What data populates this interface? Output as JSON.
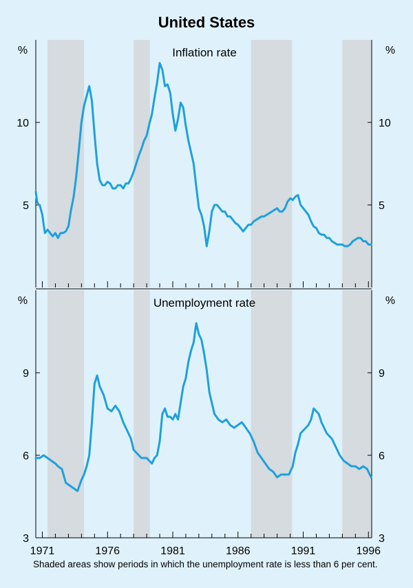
{
  "chart_data": {
    "type": "line",
    "title": "United States",
    "note": "Shaded areas show periods in which the unemployment rate is less than 6 per cent.",
    "x_range": [
      1970.5,
      1996.25
    ],
    "x_ticks": [
      1971,
      1976,
      1981,
      1986,
      1991,
      1996
    ],
    "shaded_periods": [
      [
        1971.4,
        1974.2
      ],
      [
        1978.0,
        1979.25
      ],
      [
        1987.0,
        1990.15
      ],
      [
        1994.0,
        1996.25
      ]
    ],
    "line_color": "#1ea0dc",
    "shade_color": "#d5dbdf",
    "panels": [
      {
        "title": "Inflation rate",
        "unit_left": "%",
        "unit_right": "%",
        "ylim": [
          0,
          15
        ],
        "y_ticks": [
          5,
          10
        ],
        "series": [
          {
            "x": [
              1970.5,
              1970.6,
              1970.7,
              1970.8,
              1970.9,
              1971.0,
              1971.1,
              1971.2,
              1971.4,
              1971.6,
              1971.8,
              1972.0,
              1972.2,
              1972.4,
              1972.6,
              1972.8,
              1973.0,
              1973.2,
              1973.4,
              1973.6,
              1973.8,
              1974.0,
              1974.2,
              1974.4,
              1974.6,
              1974.8,
              1975.0,
              1975.2,
              1975.4,
              1975.6,
              1975.8,
              1976.0,
              1976.2,
              1976.4,
              1976.6,
              1976.8,
              1977.0,
              1977.2,
              1977.4,
              1977.6,
              1977.8,
              1978.0,
              1978.2,
              1978.4,
              1978.6,
              1978.8,
              1979.0,
              1979.2,
              1979.4,
              1979.6,
              1979.8,
              1980.0,
              1980.2,
              1980.4,
              1980.6,
              1980.8,
              1981.0,
              1981.2,
              1981.4,
              1981.6,
              1981.8,
              1982.0,
              1982.2,
              1982.4,
              1982.6,
              1982.8,
              1983.0,
              1983.2,
              1983.4,
              1983.6,
              1983.8,
              1984.0,
              1984.2,
              1984.4,
              1984.6,
              1984.8,
              1985.0,
              1985.2,
              1985.4,
              1985.6,
              1985.8,
              1986.0,
              1986.2,
              1986.4,
              1986.6,
              1986.8,
              1987.0,
              1987.2,
              1987.4,
              1987.6,
              1987.8,
              1988.0,
              1988.2,
              1988.4,
              1988.6,
              1988.8,
              1989.0,
              1989.2,
              1989.4,
              1989.6,
              1989.8,
              1990.0,
              1990.2,
              1990.4,
              1990.6,
              1990.8,
              1991.0,
              1991.2,
              1991.4,
              1991.6,
              1991.8,
              1992.0,
              1992.2,
              1992.4,
              1992.6,
              1992.8,
              1993.0,
              1993.2,
              1993.4,
              1993.6,
              1993.8,
              1994.0,
              1994.2,
              1994.4,
              1994.6,
              1994.8,
              1995.0,
              1995.2,
              1995.4,
              1995.6,
              1995.8,
              1996.0,
              1996.2
            ],
            "y": [
              5.8,
              5.2,
              5.0,
              5.0,
              4.7,
              4.4,
              3.8,
              3.3,
              3.5,
              3.3,
              3.1,
              3.3,
              3.0,
              3.3,
              3.3,
              3.4,
              3.7,
              4.7,
              5.5,
              6.7,
              8.3,
              10.0,
              11.0,
              11.6,
              12.2,
              11.3,
              9.3,
              7.5,
              6.5,
              6.2,
              6.2,
              6.4,
              6.3,
              6.0,
              6.0,
              6.2,
              6.2,
              6.0,
              6.3,
              6.3,
              6.6,
              7.0,
              7.5,
              8.0,
              8.4,
              8.9,
              9.2,
              9.9,
              10.5,
              11.5,
              12.4,
              13.6,
              13.2,
              12.2,
              12.3,
              11.8,
              10.5,
              9.5,
              10.2,
              11.2,
              10.9,
              9.8,
              8.9,
              8.2,
              7.5,
              6.1,
              4.8,
              4.4,
              3.7,
              2.5,
              3.4,
              4.6,
              5.0,
              5.0,
              4.8,
              4.6,
              4.6,
              4.3,
              4.3,
              4.1,
              3.9,
              3.8,
              3.6,
              3.4,
              3.6,
              3.8,
              3.8,
              4.0,
              4.1,
              4.2,
              4.3,
              4.3,
              4.4,
              4.5,
              4.6,
              4.7,
              4.8,
              4.6,
              4.6,
              4.8,
              5.2,
              5.4,
              5.3,
              5.5,
              5.6,
              5.0,
              4.8,
              4.6,
              4.4,
              4.0,
              3.7,
              3.6,
              3.3,
              3.2,
              3.2,
              3.0,
              3.0,
              2.8,
              2.7,
              2.6,
              2.6,
              2.6,
              2.5,
              2.5,
              2.6,
              2.8,
              2.9,
              3.0,
              3.0,
              2.8,
              2.8,
              2.6,
              2.6
            ]
          }
        ]
      },
      {
        "title": "Unemployment rate",
        "unit_left": "%",
        "unit_right": "%",
        "ylim": [
          3,
          12
        ],
        "y_ticks": [
          3,
          6,
          9
        ],
        "series": [
          {
            "x": [
              1970.5,
              1970.8,
              1971.1,
              1971.4,
              1971.7,
              1972.0,
              1972.2,
              1972.5,
              1972.8,
              1973.1,
              1973.4,
              1973.7,
              1974.0,
              1974.2,
              1974.4,
              1974.6,
              1974.8,
              1975.0,
              1975.2,
              1975.4,
              1975.7,
              1976.0,
              1976.3,
              1976.6,
              1976.9,
              1977.2,
              1977.5,
              1977.8,
              1978.0,
              1978.2,
              1978.4,
              1978.6,
              1978.8,
              1979.0,
              1979.2,
              1979.4,
              1979.6,
              1979.8,
              1980.0,
              1980.2,
              1980.4,
              1980.6,
              1980.8,
              1981.0,
              1981.2,
              1981.4,
              1981.6,
              1981.8,
              1982.0,
              1982.2,
              1982.4,
              1982.6,
              1982.8,
              1983.0,
              1983.2,
              1983.4,
              1983.6,
              1983.8,
              1984.0,
              1984.2,
              1984.5,
              1984.8,
              1985.1,
              1985.4,
              1985.7,
              1986.0,
              1986.3,
              1986.6,
              1986.9,
              1987.2,
              1987.5,
              1987.8,
              1988.1,
              1988.4,
              1988.7,
              1989.0,
              1989.3,
              1989.6,
              1989.9,
              1990.2,
              1990.4,
              1990.6,
              1990.8,
              1991.0,
              1991.2,
              1991.4,
              1991.6,
              1991.8,
              1992.0,
              1992.2,
              1992.4,
              1992.6,
              1992.8,
              1993.0,
              1993.2,
              1993.5,
              1993.8,
              1994.1,
              1994.4,
              1994.7,
              1995.0,
              1995.3,
              1995.6,
              1995.9,
              1996.2
            ],
            "y": [
              5.9,
              5.9,
              6.0,
              5.9,
              5.8,
              5.7,
              5.6,
              5.5,
              5.0,
              4.9,
              4.8,
              4.7,
              5.1,
              5.3,
              5.6,
              6.0,
              7.2,
              8.6,
              8.9,
              8.5,
              8.2,
              7.7,
              7.6,
              7.8,
              7.6,
              7.2,
              6.9,
              6.6,
              6.2,
              6.1,
              6.0,
              5.9,
              5.9,
              5.9,
              5.8,
              5.7,
              5.9,
              6.0,
              6.5,
              7.5,
              7.7,
              7.4,
              7.4,
              7.3,
              7.5,
              7.3,
              7.9,
              8.5,
              8.8,
              9.4,
              9.8,
              10.1,
              10.8,
              10.4,
              10.2,
              9.7,
              9.1,
              8.3,
              7.9,
              7.5,
              7.3,
              7.2,
              7.3,
              7.1,
              7.0,
              7.1,
              7.2,
              7.0,
              6.8,
              6.5,
              6.1,
              5.9,
              5.7,
              5.5,
              5.4,
              5.2,
              5.3,
              5.3,
              5.3,
              5.6,
              6.1,
              6.4,
              6.8,
              6.9,
              7.0,
              7.1,
              7.3,
              7.7,
              7.6,
              7.5,
              7.2,
              7.0,
              6.8,
              6.7,
              6.6,
              6.3,
              6.0,
              5.8,
              5.7,
              5.6,
              5.6,
              5.5,
              5.6,
              5.5,
              5.2
            ]
          }
        ]
      }
    ]
  }
}
